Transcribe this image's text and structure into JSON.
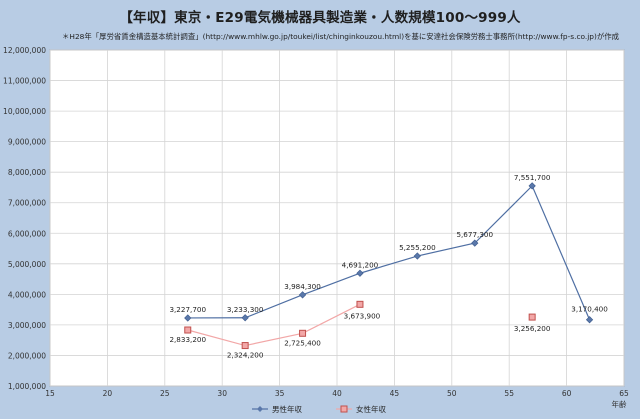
{
  "chart_data": {
    "type": "line",
    "title": "【年収】東京・E29電気機械器具製造業・人数規模100〜999人",
    "subtitle": "＊H28年「厚労省賃金構造基本統計調査」(http://www.mhlw.go.jp/toukei/list/chinginkouzou.html)を基に安達社会保険労務士事務所(http://www.fp-s.co.jp)が作成",
    "xlabel": "年齢",
    "ylabel": "",
    "xlim": [
      15,
      65
    ],
    "ylim": [
      1000000,
      12000000
    ],
    "x_ticks": [
      15,
      20,
      25,
      30,
      35,
      40,
      45,
      50,
      55,
      60,
      65
    ],
    "x_tick_labels": [
      "15",
      "20",
      "25",
      "30",
      "35",
      "40",
      "45",
      "50",
      "55",
      "60",
      "65"
    ],
    "y_ticks": [
      1000000,
      2000000,
      3000000,
      4000000,
      5000000,
      6000000,
      7000000,
      8000000,
      9000000,
      10000000,
      11000000,
      12000000
    ],
    "y_tick_labels": [
      "1,000,000",
      "2,000,000",
      "3,000,000",
      "4,000,000",
      "5,000,000",
      "6,000,000",
      "7,000,000",
      "8,000,000",
      "9,000,000",
      "10,000,000",
      "11,000,000",
      "12,000,000"
    ],
    "grid": true,
    "legend_position": "bottom",
    "series": [
      {
        "name": "男性年収",
        "color": "#4f6fa3",
        "marker": "diamond",
        "points": [
          {
            "x": 27,
            "y": 3227700,
            "label": "3,227,700"
          },
          {
            "x": 32,
            "y": 3233300,
            "label": "3,233,300"
          },
          {
            "x": 37,
            "y": 3984300,
            "label": "3,984,300"
          },
          {
            "x": 42,
            "y": 4691200,
            "label": "4,691,200"
          },
          {
            "x": 47,
            "y": 5255200,
            "label": "5,255,200"
          },
          {
            "x": 52,
            "y": 5677300,
            "label": "5,677,300"
          },
          {
            "x": 57,
            "y": 7551700,
            "label": "7,551,700"
          },
          {
            "x": 62,
            "y": 3170400,
            "label": "3,170,400"
          }
        ]
      },
      {
        "name": "女性年収",
        "color": "#f2a7a7",
        "marker_color": "#c0504d",
        "marker": "square",
        "segments": [
          [
            0,
            1,
            2,
            3
          ],
          [
            4
          ]
        ],
        "points": [
          {
            "x": 27,
            "y": 2833200,
            "label": "2,833,200"
          },
          {
            "x": 32,
            "y": 2324200,
            "label": "2,324,200"
          },
          {
            "x": 37,
            "y": 2725400,
            "label": "2,725,400"
          },
          {
            "x": 42,
            "y": 3673900,
            "label": "3,673,900"
          },
          {
            "x": 57,
            "y": 3256200,
            "label": "3,256,200"
          }
        ]
      }
    ]
  }
}
